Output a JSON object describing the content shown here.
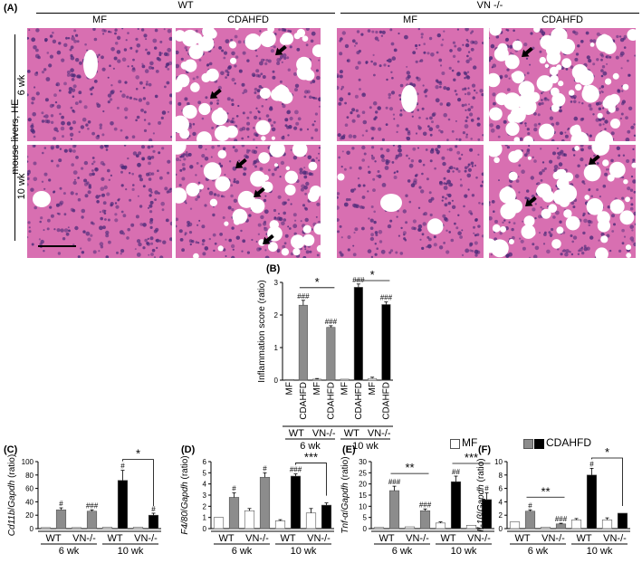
{
  "figure_a": {
    "label": "(A)",
    "group_wt": "WT",
    "group_vn": "VN -/-",
    "col_mf": "MF",
    "col_cdahfd": "CDAHFD",
    "side_label": "mouse livers, HE",
    "row_6wk": "6 wk",
    "row_10wk": "10 wk",
    "colors": {
      "tissue": "#d86fb1",
      "nuclei": "#4a2a78",
      "fat": "#ffffff"
    }
  },
  "legend": {
    "mf": "MF",
    "cdahfd": "CDAHFD",
    "colors": {
      "mf": "#ffffff",
      "cdahfd_gray": "#8c8c8c",
      "cdahfd_black": "#000000"
    }
  },
  "chart_data": [
    {
      "panel": "(B)",
      "type": "bar",
      "ylabel": "Inflammation score (ratio)",
      "ylim": [
        0,
        3
      ],
      "yticks": [
        "0",
        "1",
        "2",
        "3"
      ],
      "categories": [
        "MF",
        "CDAHFD",
        "MF",
        "CDAHFD",
        "MF",
        "CDAHFD",
        "MF",
        "CDAHFD"
      ],
      "values": [
        0.02,
        2.3,
        0.03,
        1.62,
        0.03,
        2.85,
        0.05,
        2.32
      ],
      "errors": [
        0,
        0.15,
        0.02,
        0.05,
        0,
        0.1,
        0.04,
        0.08
      ],
      "fills": [
        "#ffffff",
        "#8c8c8c",
        "#ffffff",
        "#8c8c8c",
        "#ffffff",
        "#000000",
        "#ffffff",
        "#000000"
      ],
      "bar_labels": [
        "",
        "###",
        "",
        "###",
        "",
        "###",
        "",
        "###"
      ],
      "genotypes": [
        "WT",
        "VN-/-",
        "WT",
        "VN-/-"
      ],
      "timepoints": [
        "6 wk",
        "10 wk"
      ],
      "sig": [
        {
          "from": 1,
          "to": 3,
          "label": "*"
        },
        {
          "from": 5,
          "to": 7,
          "label": "*"
        }
      ]
    },
    {
      "panel": "(C)",
      "type": "bar",
      "ylabel_gene": "Cd11b",
      "ylabel_ref": "Gapdh",
      "ylabel_rest": "(ratio)",
      "ylim": [
        0,
        100
      ],
      "yticks": [
        "0",
        "20",
        "40",
        "60",
        "80",
        "100"
      ],
      "values": [
        1.5,
        28,
        1.5,
        26,
        2,
        72,
        2,
        20
      ],
      "errors": [
        0,
        3,
        0,
        2,
        0,
        15,
        0,
        3
      ],
      "fills": [
        "#ffffff",
        "#8c8c8c",
        "#ffffff",
        "#8c8c8c",
        "#ffffff",
        "#000000",
        "#ffffff",
        "#000000"
      ],
      "bar_labels": [
        "",
        "#",
        "",
        "###",
        "",
        "#",
        "",
        "#"
      ],
      "genotypes": [
        "WT",
        "VN-/-",
        "WT",
        "VN-/-"
      ],
      "timepoints": [
        "6 wk",
        "10 wk"
      ],
      "sig": [
        {
          "from": 5,
          "to": 7,
          "label": "*",
          "style": "bracket"
        }
      ]
    },
    {
      "panel": "(D)",
      "type": "bar",
      "ylabel_gene": "F4/80",
      "ylabel_ref": "Gapdh",
      "ylabel_rest": "(ratio)",
      "ylim": [
        0,
        6
      ],
      "yticks": [
        "0",
        "1",
        "2",
        "3",
        "4",
        "5",
        "6"
      ],
      "values": [
        1,
        2.8,
        1.6,
        4.6,
        0.7,
        4.7,
        1.4,
        2.1
      ],
      "errors": [
        0,
        0.4,
        0.2,
        0.4,
        0.1,
        0.2,
        0.4,
        0.2
      ],
      "fills": [
        "#ffffff",
        "#8c8c8c",
        "#ffffff",
        "#8c8c8c",
        "#ffffff",
        "#000000",
        "#ffffff",
        "#000000"
      ],
      "bar_labels": [
        "",
        "#",
        "",
        "#",
        "",
        "###",
        "",
        ""
      ],
      "genotypes": [
        "WT",
        "VN-/-",
        "WT",
        "VN-/-"
      ],
      "timepoints": [
        "6 wk",
        "10 wk"
      ],
      "sig": [
        {
          "from": 5,
          "to": 7,
          "label": "***",
          "style": "bracket"
        }
      ]
    },
    {
      "panel": "(E)",
      "type": "bar",
      "ylabel_gene": "Tnf-α",
      "ylabel_ref": "Gapdh",
      "ylabel_rest": "(ratio)",
      "ylim": [
        0,
        30
      ],
      "yticks": [
        "0",
        "5",
        "10",
        "15",
        "20",
        "25",
        "30"
      ],
      "values": [
        0.5,
        17,
        0.8,
        8,
        2.5,
        21,
        1.5,
        13
      ],
      "errors": [
        0,
        2,
        0,
        0.8,
        0.5,
        2.5,
        0,
        3
      ],
      "fills": [
        "#ffffff",
        "#8c8c8c",
        "#ffffff",
        "#8c8c8c",
        "#ffffff",
        "#000000",
        "#ffffff",
        "#000000"
      ],
      "bar_labels": [
        "",
        "###",
        "",
        "###",
        "",
        "##",
        "",
        "#"
      ],
      "genotypes": [
        "WT",
        "VN-/-",
        "WT",
        "VN-/-"
      ],
      "timepoints": [
        "6 wk",
        "10 wk"
      ],
      "sig": [
        {
          "from": 1,
          "to": 3,
          "label": "**"
        },
        {
          "from": 5,
          "to": 7,
          "label": "***"
        }
      ]
    },
    {
      "panel": "(F)",
      "type": "bar",
      "ylabel_gene": "Il-1β",
      "ylabel_ref": "Gapdh",
      "ylabel_rest": "(ratio)",
      "ylim": [
        0,
        10
      ],
      "yticks": [
        "0",
        "2",
        "4",
        "6",
        "8",
        "10"
      ],
      "values": [
        1,
        2.6,
        0.2,
        0.7,
        1.3,
        8,
        1.3,
        2.3
      ],
      "errors": [
        0,
        0.2,
        0,
        0.1,
        0.2,
        1,
        0.3,
        0
      ],
      "fills": [
        "#ffffff",
        "#8c8c8c",
        "#ffffff",
        "#8c8c8c",
        "#ffffff",
        "#000000",
        "#ffffff",
        "#000000"
      ],
      "bar_labels": [
        "",
        "#",
        "",
        "###",
        "",
        "#",
        "",
        ""
      ],
      "genotypes": [
        "WT",
        "VN-/-",
        "WT",
        "VN-/-"
      ],
      "timepoints": [
        "6 wk",
        "10 wk"
      ],
      "sig": [
        {
          "from": 1,
          "to": 3,
          "label": "**"
        },
        {
          "from": 5,
          "to": 7,
          "label": "*",
          "style": "bracket"
        }
      ]
    }
  ]
}
